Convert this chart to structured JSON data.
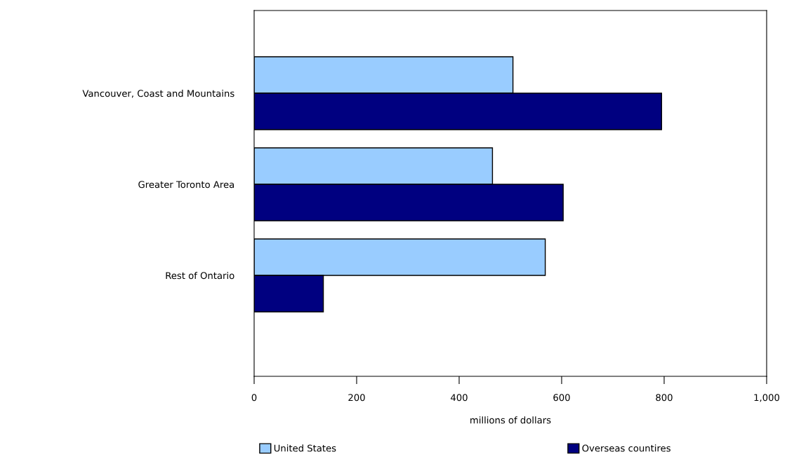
{
  "chart_data": {
    "type": "bar",
    "orientation": "horizontal",
    "xlabel": "millions of dollars",
    "categories": [
      "Vancouver, Coast and Mountains",
      "Greater Toronto Area",
      "Rest of Ontario"
    ],
    "series": [
      {
        "name": "United States",
        "color": "#99ccff",
        "values": [
          505,
          465,
          568
        ]
      },
      {
        "name": "Overseas countires",
        "color": "#000080",
        "values": [
          795,
          603,
          135
        ]
      }
    ],
    "xlim": [
      0,
      1000
    ],
    "xticks": [
      0,
      200,
      400,
      600,
      800,
      {
        "value": 1000,
        "label": "1,000"
      }
    ],
    "grid": false,
    "legend": "bottom"
  }
}
